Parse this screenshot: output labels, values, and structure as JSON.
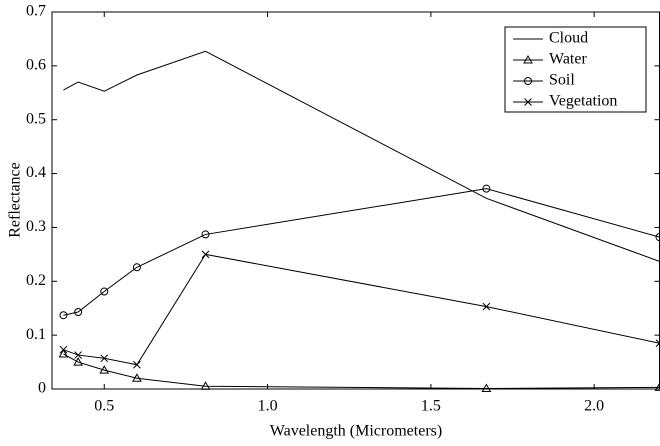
{
  "chart_data": {
    "type": "line",
    "x_label": "Wavelength (Micrometers)",
    "y_label": "Reflectance",
    "x": [
      0.375,
      0.42,
      0.5,
      0.6,
      0.81,
      1.67,
      2.2
    ],
    "series": [
      {
        "name": "Cloud",
        "color": "#000000",
        "marker": "none",
        "values": [
          0.555,
          0.57,
          0.553,
          0.583,
          0.627,
          0.354,
          0.237
        ]
      },
      {
        "name": "Water",
        "color": "#000000",
        "marker": "triangle",
        "values": [
          0.065,
          0.05,
          0.035,
          0.02,
          0.005,
          0.001,
          0.003
        ]
      },
      {
        "name": "Soil",
        "color": "#000000",
        "marker": "circle",
        "values": [
          0.137,
          0.143,
          0.181,
          0.226,
          0.287,
          0.372,
          0.282
        ]
      },
      {
        "name": "Vegetation",
        "color": "#000000",
        "marker": "x",
        "values": [
          0.073,
          0.063,
          0.057,
          0.045,
          0.25,
          0.153,
          0.085
        ]
      }
    ],
    "xlim": [
      0.34,
      2.2
    ],
    "ylim": [
      0,
      0.7
    ],
    "xticks": [
      0.5,
      {
        "value": 1,
        "label": "1.0"
      },
      1.5,
      {
        "value": 2,
        "label": "2.0"
      }
    ],
    "yticks": [
      0,
      0.1,
      0.2,
      0.3,
      0.4,
      0.5,
      0.6,
      0.7
    ],
    "grid": false,
    "legend": "upper right"
  }
}
